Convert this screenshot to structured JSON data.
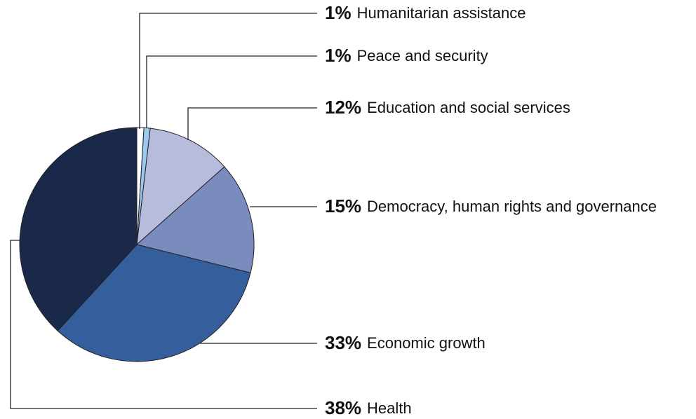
{
  "chart_data": {
    "type": "pie",
    "slices": [
      {
        "label": "Humanitarian assistance",
        "pct_text": "1%",
        "value": 1,
        "color": "#ffffff"
      },
      {
        "label": "Peace and security",
        "pct_text": "1%",
        "value": 1,
        "color": "#9cc9f2"
      },
      {
        "label": "Education and social services",
        "pct_text": "12%",
        "value": 12,
        "color": "#b7bcdc"
      },
      {
        "label": "Democracy, human rights and governance",
        "pct_text": "15%",
        "value": 15,
        "color": "#7a8bbd"
      },
      {
        "label": "Economic growth",
        "pct_text": "33%",
        "value": 33,
        "color": "#345f9c"
      },
      {
        "label": "Health",
        "pct_text": "38%",
        "value": 38,
        "color": "#1a2849"
      }
    ]
  }
}
